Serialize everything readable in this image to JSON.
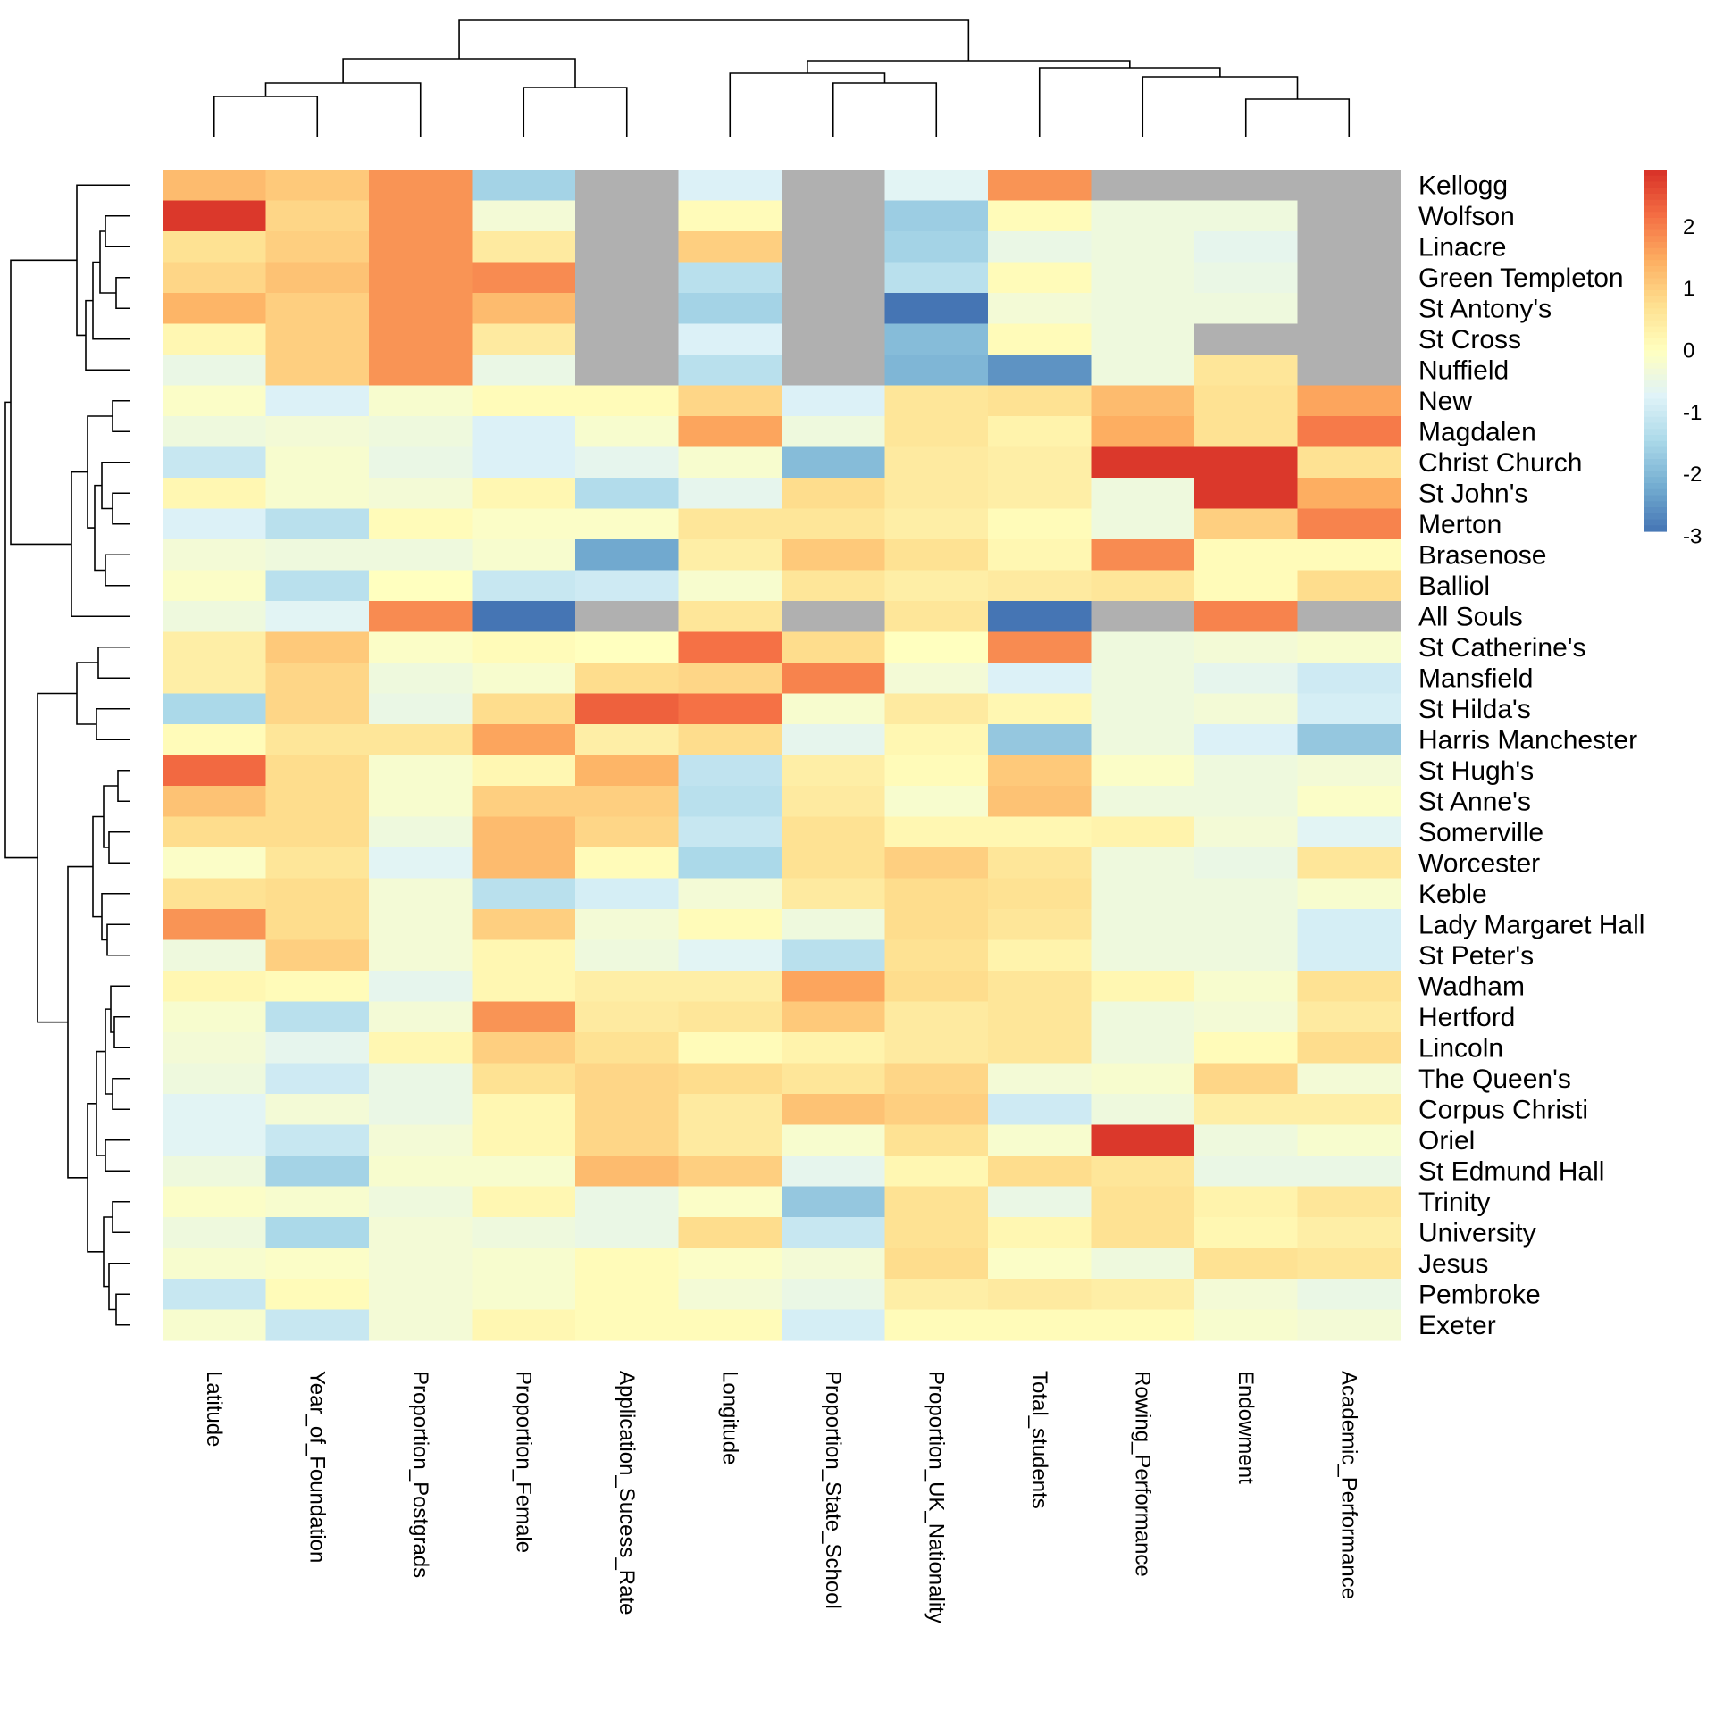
{
  "chart_data": {
    "type": "heatmap",
    "columns": [
      "Latitude",
      "Year_of_Foundation",
      "Proportion_Postgrads",
      "Proportion_Female",
      "Application_Sucess_Rate",
      "Longitude",
      "Proportion_State_School",
      "Proportion_UK_Nationality",
      "Total_students",
      "Rowing_Performance",
      "Endowment",
      "Academic_Performance"
    ],
    "rows": [
      "Kellogg",
      "Wolfson",
      "Linacre",
      "Green Templeton",
      "St Antony's",
      "St Cross",
      "Nuffield",
      "New",
      "Magdalen",
      "Christ Church",
      "St John's",
      "Merton",
      "Brasenose",
      "Balliol",
      "All Souls",
      "St Catherine's",
      "Mansfield",
      "St Hilda's",
      "Harris Manchester",
      "St Hugh's",
      "St Anne's",
      "Somerville",
      "Worcester",
      "Keble",
      "Lady Margaret Hall",
      "St Peter's",
      "Wadham",
      "Hertford",
      "Lincoln",
      "The Queen's",
      "Corpus Christi",
      "Oriel",
      "St Edmund Hall",
      "Trinity",
      "University",
      "Jesus",
      "Pembroke",
      "Exeter"
    ],
    "values": [
      [
        1.3,
        1.1,
        1.8,
        -1.6,
        null,
        -0.8,
        null,
        -0.7,
        1.8,
        null,
        null,
        null
      ],
      [
        2.9,
        0.9,
        1.8,
        -0.3,
        null,
        0.1,
        null,
        -1.7,
        0.1,
        -0.4,
        -0.4,
        null
      ],
      [
        0.7,
        1.0,
        1.8,
        0.5,
        null,
        1.0,
        null,
        -1.6,
        -0.5,
        -0.4,
        -0.6,
        null
      ],
      [
        0.9,
        1.2,
        1.8,
        1.9,
        null,
        -1.3,
        null,
        -1.3,
        0.1,
        -0.4,
        -0.5,
        null
      ],
      [
        1.4,
        1.0,
        1.8,
        1.3,
        null,
        -1.6,
        null,
        -3.0,
        -0.3,
        -0.4,
        -0.4,
        null
      ],
      [
        0.2,
        1.0,
        1.8,
        0.5,
        null,
        -0.8,
        null,
        -2.0,
        0.1,
        -0.4,
        null,
        null
      ],
      [
        -0.5,
        1.0,
        1.8,
        -0.5,
        null,
        -1.3,
        null,
        -2.1,
        -2.6,
        -0.4,
        0.6,
        null
      ],
      [
        -0.1,
        -0.8,
        -0.2,
        0.1,
        0.1,
        0.9,
        -0.8,
        0.6,
        0.7,
        1.3,
        0.7,
        1.6
      ],
      [
        -0.4,
        -0.3,
        -0.4,
        -0.8,
        -0.2,
        1.6,
        -0.4,
        0.6,
        0.3,
        1.5,
        0.7,
        2.1
      ],
      [
        -1.1,
        -0.2,
        -0.5,
        -0.8,
        -0.6,
        -0.2,
        -2.0,
        0.5,
        0.4,
        2.9,
        2.9,
        0.7
      ],
      [
        0.2,
        -0.2,
        -0.3,
        0.2,
        -1.4,
        -0.6,
        0.8,
        0.5,
        0.4,
        -0.4,
        2.9,
        1.5
      ],
      [
        -0.8,
        -1.3,
        0.1,
        -0.1,
        -0.1,
        0.6,
        0.6,
        0.4,
        0.1,
        -0.4,
        1.0,
        2.0
      ],
      [
        -0.3,
        -0.4,
        -0.4,
        -0.2,
        -2.3,
        0.4,
        1.1,
        0.7,
        0.2,
        1.9,
        0.1,
        0.1
      ],
      [
        -0.1,
        -1.3,
        0.0,
        -1.1,
        -1.0,
        -0.2,
        0.6,
        0.4,
        0.5,
        0.6,
        0.1,
        0.8
      ],
      [
        -0.4,
        -0.7,
        1.9,
        -3.0,
        null,
        0.6,
        null,
        0.6,
        -3.0,
        null,
        2.0,
        null
      ],
      [
        0.4,
        1.1,
        -0.1,
        0.1,
        0.0,
        2.2,
        0.8,
        0.0,
        1.9,
        -0.4,
        -0.3,
        -0.2
      ],
      [
        0.4,
        0.9,
        -0.4,
        -0.2,
        0.8,
        0.9,
        2.0,
        -0.3,
        -0.8,
        -0.4,
        -0.6,
        -1.0
      ],
      [
        -1.5,
        0.9,
        -0.5,
        0.8,
        2.4,
        2.2,
        -0.2,
        0.5,
        0.2,
        -0.4,
        -0.3,
        -0.9
      ],
      [
        0.1,
        0.6,
        0.6,
        1.6,
        0.4,
        0.8,
        -0.6,
        0.2,
        -1.8,
        -0.4,
        -0.8,
        -1.8
      ],
      [
        2.3,
        0.8,
        -0.2,
        0.2,
        1.4,
        -1.2,
        0.4,
        0.1,
        1.1,
        -0.1,
        -0.4,
        -0.3
      ],
      [
        1.2,
        0.8,
        -0.2,
        1.0,
        1.0,
        -1.3,
        0.5,
        -0.2,
        1.2,
        -0.4,
        -0.4,
        -0.1
      ],
      [
        0.8,
        0.8,
        -0.4,
        1.3,
        0.9,
        -1.1,
        0.7,
        0.2,
        0.2,
        0.3,
        -0.3,
        -0.7
      ],
      [
        -0.1,
        0.6,
        -0.7,
        1.3,
        0.1,
        -1.5,
        0.7,
        1.0,
        0.6,
        -0.4,
        -0.5,
        0.6
      ],
      [
        0.7,
        0.8,
        -0.3,
        -1.3,
        -0.9,
        -0.3,
        0.5,
        0.8,
        0.7,
        -0.4,
        -0.4,
        -0.2
      ],
      [
        1.8,
        0.8,
        -0.3,
        1.0,
        -0.3,
        0.1,
        -0.4,
        0.8,
        0.6,
        -0.4,
        -0.4,
        -0.9
      ],
      [
        -0.4,
        1.0,
        -0.3,
        0.2,
        -0.4,
        -0.7,
        -1.3,
        0.7,
        0.3,
        -0.4,
        -0.4,
        -0.9
      ],
      [
        0.2,
        0.1,
        -0.6,
        0.2,
        0.4,
        0.4,
        1.6,
        0.8,
        0.6,
        0.2,
        -0.2,
        0.7
      ],
      [
        -0.2,
        -1.3,
        -0.3,
        1.8,
        0.5,
        0.6,
        1.1,
        0.5,
        0.6,
        -0.4,
        -0.3,
        0.5
      ],
      [
        -0.3,
        -0.6,
        0.2,
        1.0,
        0.7,
        0.1,
        0.3,
        0.5,
        0.6,
        -0.4,
        0.1,
        0.8
      ],
      [
        -0.4,
        -1.0,
        -0.5,
        0.7,
        0.9,
        0.8,
        0.6,
        0.9,
        -0.3,
        -0.2,
        0.9,
        -0.3
      ],
      [
        -0.7,
        -0.3,
        -0.5,
        0.2,
        0.9,
        0.5,
        1.2,
        1.0,
        -1.0,
        -0.4,
        0.4,
        0.4
      ],
      [
        -0.7,
        -1.1,
        -0.3,
        0.2,
        0.9,
        0.5,
        -0.2,
        0.7,
        -0.2,
        2.9,
        -0.4,
        -0.2
      ],
      [
        -0.4,
        -1.6,
        -0.2,
        -0.2,
        1.3,
        1.0,
        -0.6,
        0.2,
        0.8,
        0.6,
        -0.5,
        -0.5
      ],
      [
        -0.1,
        -0.2,
        -0.4,
        0.2,
        -0.5,
        -0.1,
        -1.8,
        0.7,
        -0.5,
        0.7,
        0.3,
        0.6
      ],
      [
        -0.4,
        -1.5,
        -0.3,
        -0.4,
        -0.5,
        0.8,
        -1.1,
        0.7,
        0.2,
        0.7,
        0.2,
        0.4
      ],
      [
        -0.2,
        -0.1,
        -0.3,
        -0.2,
        0.1,
        -0.1,
        -0.3,
        0.8,
        -0.1,
        -0.4,
        0.7,
        0.6
      ],
      [
        -1.1,
        0.1,
        -0.3,
        -0.2,
        0.1,
        -0.3,
        -0.5,
        0.4,
        0.5,
        0.4,
        -0.3,
        -0.5
      ],
      [
        -0.2,
        -1.1,
        -0.3,
        0.2,
        0.1,
        0.1,
        -0.9,
        0.1,
        0.1,
        0.1,
        -0.2,
        -0.3
      ]
    ],
    "missing_color": "#b0b0b0",
    "color_scale": {
      "min": -3,
      "max": 3,
      "stops": [
        "#4575b4",
        "#74add1",
        "#abd9e9",
        "#e0f3f8",
        "#ffffbf",
        "#fee090",
        "#fdae61",
        "#f46d43",
        "#d73027"
      ],
      "ticks": [
        "2",
        "1",
        "0",
        "-1",
        "-2",
        "-3"
      ]
    },
    "column_order_tree": [
      [
        [
          0,
          1
        ],
        2
      ],
      [
        3,
        4
      ]
    ],
    "column_order_tree_right": [
      [
        5,
        [
          6,
          7
        ]
      ],
      [
        8,
        [
          9,
          [
            10,
            11
          ]
        ]
      ]
    ],
    "grid": false,
    "legend": "right"
  }
}
